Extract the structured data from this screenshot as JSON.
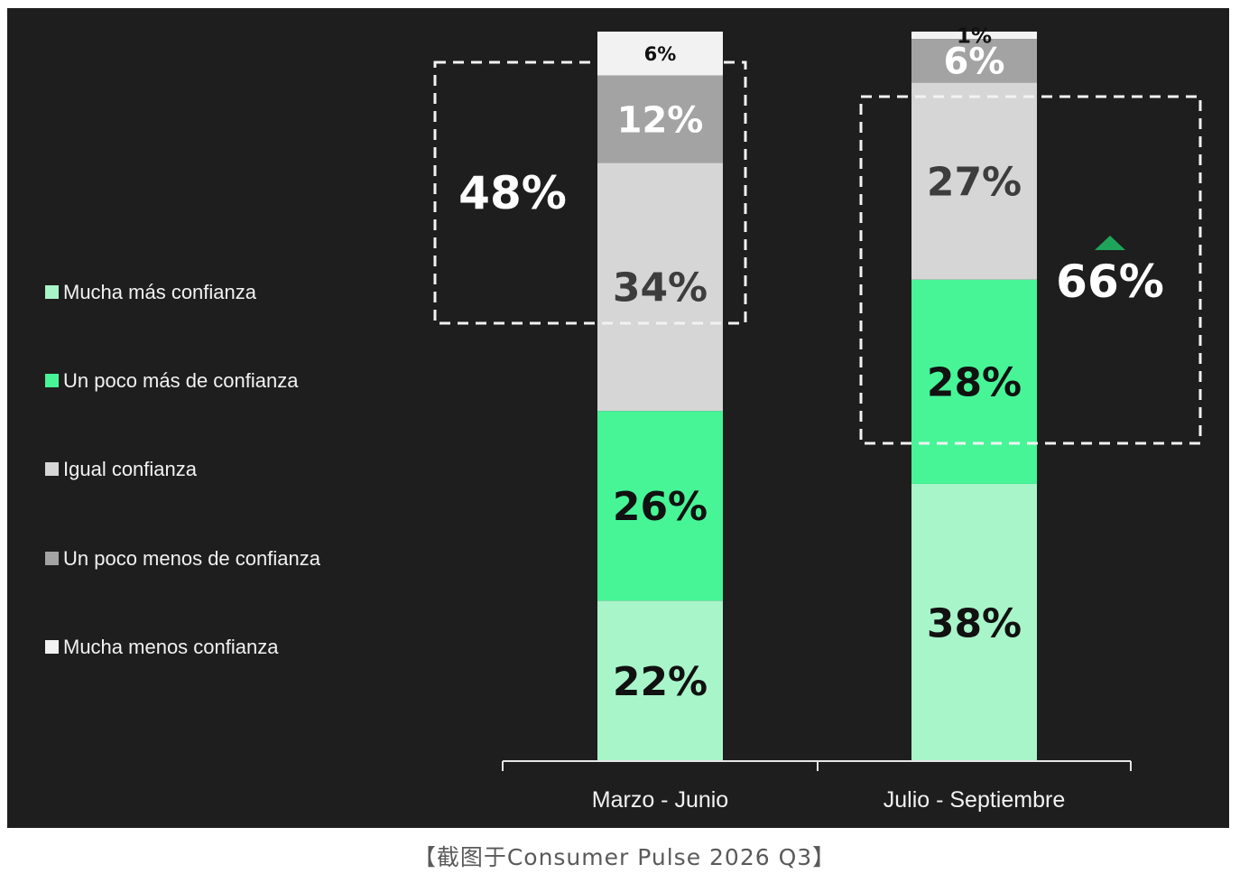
{
  "chart_data": {
    "type": "bar",
    "stacked": true,
    "categories": [
      "Marzo - Junio",
      "Julio - Septiembre"
    ],
    "series": [
      {
        "name": "Mucha más confianza",
        "color": "#a8f5c9",
        "label_color": "#111111",
        "values": [
          22,
          38
        ]
      },
      {
        "name": "Un poco más de confianza",
        "color": "#47f597",
        "label_color": "#111111",
        "values": [
          26,
          28
        ]
      },
      {
        "name": "Igual confianza",
        "color": "#d6d6d6",
        "label_color": "#3d3d3d",
        "values": [
          34,
          27
        ]
      },
      {
        "name": "Un poco menos de confianza",
        "color": "#a3a3a3",
        "label_color": "#ffffff",
        "values": [
          12,
          6
        ]
      },
      {
        "name": "Mucha menos confianza",
        "color": "#f2f2f2",
        "label_color": "#111111",
        "values": [
          6,
          1
        ]
      }
    ],
    "value_labels": [
      [
        "22%",
        "26%",
        "34%",
        "12%",
        "6%"
      ],
      [
        "38%",
        "28%",
        "27%",
        "6%",
        "1%"
      ]
    ],
    "totals": [
      {
        "category": "Marzo - Junio",
        "label": "48%",
        "value": 48,
        "trend": "none"
      },
      {
        "category": "Julio - Septiembre",
        "label": "66%",
        "value": 66,
        "trend": "up"
      }
    ],
    "ylim": [
      0,
      100
    ],
    "legend_position": "left",
    "grid": false,
    "background": "#1e1e1e",
    "trend_color": "#1fa55b"
  },
  "caption": "【截图于Consumer Pulse 2026 Q3】"
}
